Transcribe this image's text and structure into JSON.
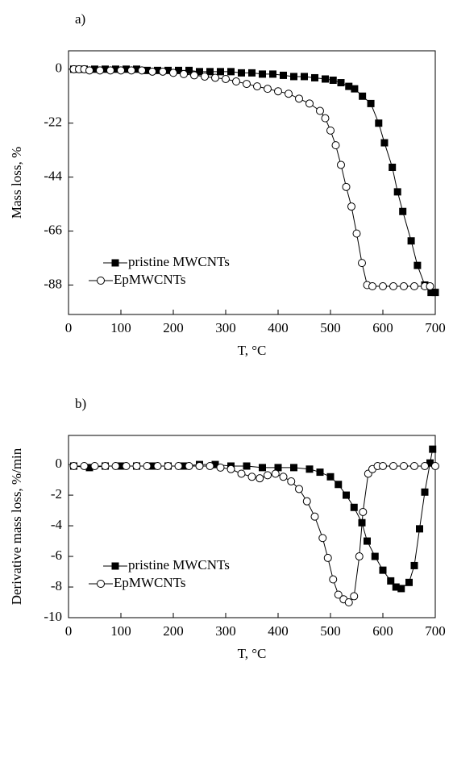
{
  "chart_data": [
    {
      "type": "line",
      "panel_label": "a)",
      "xlabel": "T, °C",
      "ylabel": "Mass loss, %",
      "xlim": [
        0,
        700
      ],
      "ylim": [
        -100,
        7.5
      ],
      "xticks": [
        0,
        100,
        200,
        300,
        400,
        500,
        600,
        700
      ],
      "yticks": [
        0,
        -22,
        -44,
        -66,
        -88
      ],
      "legend": "lower left",
      "series": [
        {
          "name": "pristine MWCNTs",
          "color": "#000000",
          "marker": "square",
          "x": [
            10,
            30,
            50,
            70,
            90,
            110,
            130,
            150,
            170,
            190,
            210,
            230,
            250,
            270,
            290,
            310,
            330,
            350,
            370,
            390,
            410,
            430,
            450,
            470,
            490,
            505,
            520,
            535,
            546,
            561,
            577,
            592,
            603,
            618,
            628,
            638,
            654,
            666,
            680,
            692,
            700
          ],
          "values": [
            0,
            0,
            0,
            0,
            0,
            0,
            0,
            -0.5,
            -0.5,
            -0.5,
            -0.5,
            -0.5,
            -1,
            -1,
            -1,
            -1,
            -1.5,
            -1.5,
            -2,
            -2,
            -2.5,
            -3,
            -3,
            -3.5,
            -4,
            -4.5,
            -5.5,
            -7,
            -8,
            -11,
            -14,
            -22,
            -30,
            -40,
            -50,
            -58,
            -70,
            -80,
            -88,
            -91,
            -91
          ]
        },
        {
          "name": "EpMWCNTs",
          "color": "#000000",
          "marker": "circle",
          "x": [
            10,
            20,
            30,
            40,
            60,
            80,
            100,
            120,
            140,
            160,
            180,
            200,
            220,
            240,
            260,
            280,
            300,
            320,
            340,
            360,
            380,
            400,
            420,
            440,
            460,
            480,
            490,
            500,
            510,
            520,
            530,
            540,
            550,
            560,
            570,
            580,
            600,
            620,
            640,
            660,
            680,
            690
          ],
          "values": [
            0,
            0,
            0,
            -0.5,
            -0.5,
            -0.5,
            -0.5,
            -0.5,
            -0.5,
            -1,
            -1,
            -1.5,
            -2,
            -2.5,
            -3,
            -3.5,
            -4,
            -5,
            -6,
            -7,
            -8,
            -9,
            -10,
            -12,
            -14,
            -17,
            -20,
            -25,
            -31,
            -39,
            -48,
            -56,
            -67,
            -79,
            -88,
            -88.5,
            -88.5,
            -88.5,
            -88.5,
            -88.5,
            -88.5,
            -88.5
          ]
        }
      ]
    },
    {
      "type": "line",
      "panel_label": "b)",
      "xlabel": "T, °C",
      "ylabel": "Derivative mass loss, %/min",
      "xlim": [
        0,
        700
      ],
      "ylim": [
        -10,
        1.9
      ],
      "xticks": [
        0,
        100,
        200,
        300,
        400,
        500,
        600,
        700
      ],
      "yticks": [
        0,
        -2,
        -4,
        -6,
        -8,
        -10
      ],
      "legend": "lower left",
      "series": [
        {
          "name": "pristine MWCNTs",
          "color": "#000000",
          "marker": "square",
          "x": [
            10,
            40,
            70,
            100,
            130,
            160,
            190,
            220,
            250,
            280,
            310,
            340,
            370,
            400,
            430,
            460,
            480,
            500,
            515,
            530,
            545,
            560,
            570,
            585,
            600,
            615,
            625,
            635,
            650,
            660,
            670,
            680,
            690,
            695
          ],
          "values": [
            -0.1,
            -0.2,
            -0.1,
            -0.1,
            -0.1,
            -0.1,
            -0.1,
            -0.1,
            0,
            0,
            -0.1,
            -0.1,
            -0.2,
            -0.2,
            -0.2,
            -0.3,
            -0.5,
            -0.8,
            -1.3,
            -2,
            -2.8,
            -3.8,
            -5,
            -6,
            -6.9,
            -7.6,
            -8,
            -8.1,
            -7.7,
            -6.6,
            -4.2,
            -1.8,
            0.1,
            1
          ]
        },
        {
          "name": "EpMWCNTs",
          "color": "#000000",
          "marker": "circle",
          "x": [
            10,
            30,
            50,
            70,
            90,
            110,
            130,
            150,
            170,
            190,
            210,
            230,
            250,
            270,
            290,
            310,
            330,
            350,
            365,
            380,
            395,
            410,
            425,
            440,
            455,
            470,
            485,
            495,
            505,
            515,
            525,
            535,
            545,
            555,
            562,
            572,
            580,
            590,
            600,
            620,
            640,
            660,
            680,
            700
          ],
          "values": [
            -0.1,
            -0.1,
            -0.1,
            -0.1,
            -0.1,
            -0.1,
            -0.1,
            -0.1,
            -0.1,
            -0.1,
            -0.1,
            -0.1,
            -0.1,
            -0.1,
            -0.2,
            -0.3,
            -0.6,
            -0.8,
            -0.9,
            -0.7,
            -0.6,
            -0.8,
            -1.1,
            -1.6,
            -2.4,
            -3.4,
            -4.8,
            -6.1,
            -7.5,
            -8.5,
            -8.8,
            -9,
            -8.6,
            -6,
            -3.1,
            -0.6,
            -0.3,
            -0.1,
            -0.1,
            -0.1,
            -0.1,
            -0.1,
            -0.1,
            -0.1
          ]
        }
      ]
    }
  ]
}
